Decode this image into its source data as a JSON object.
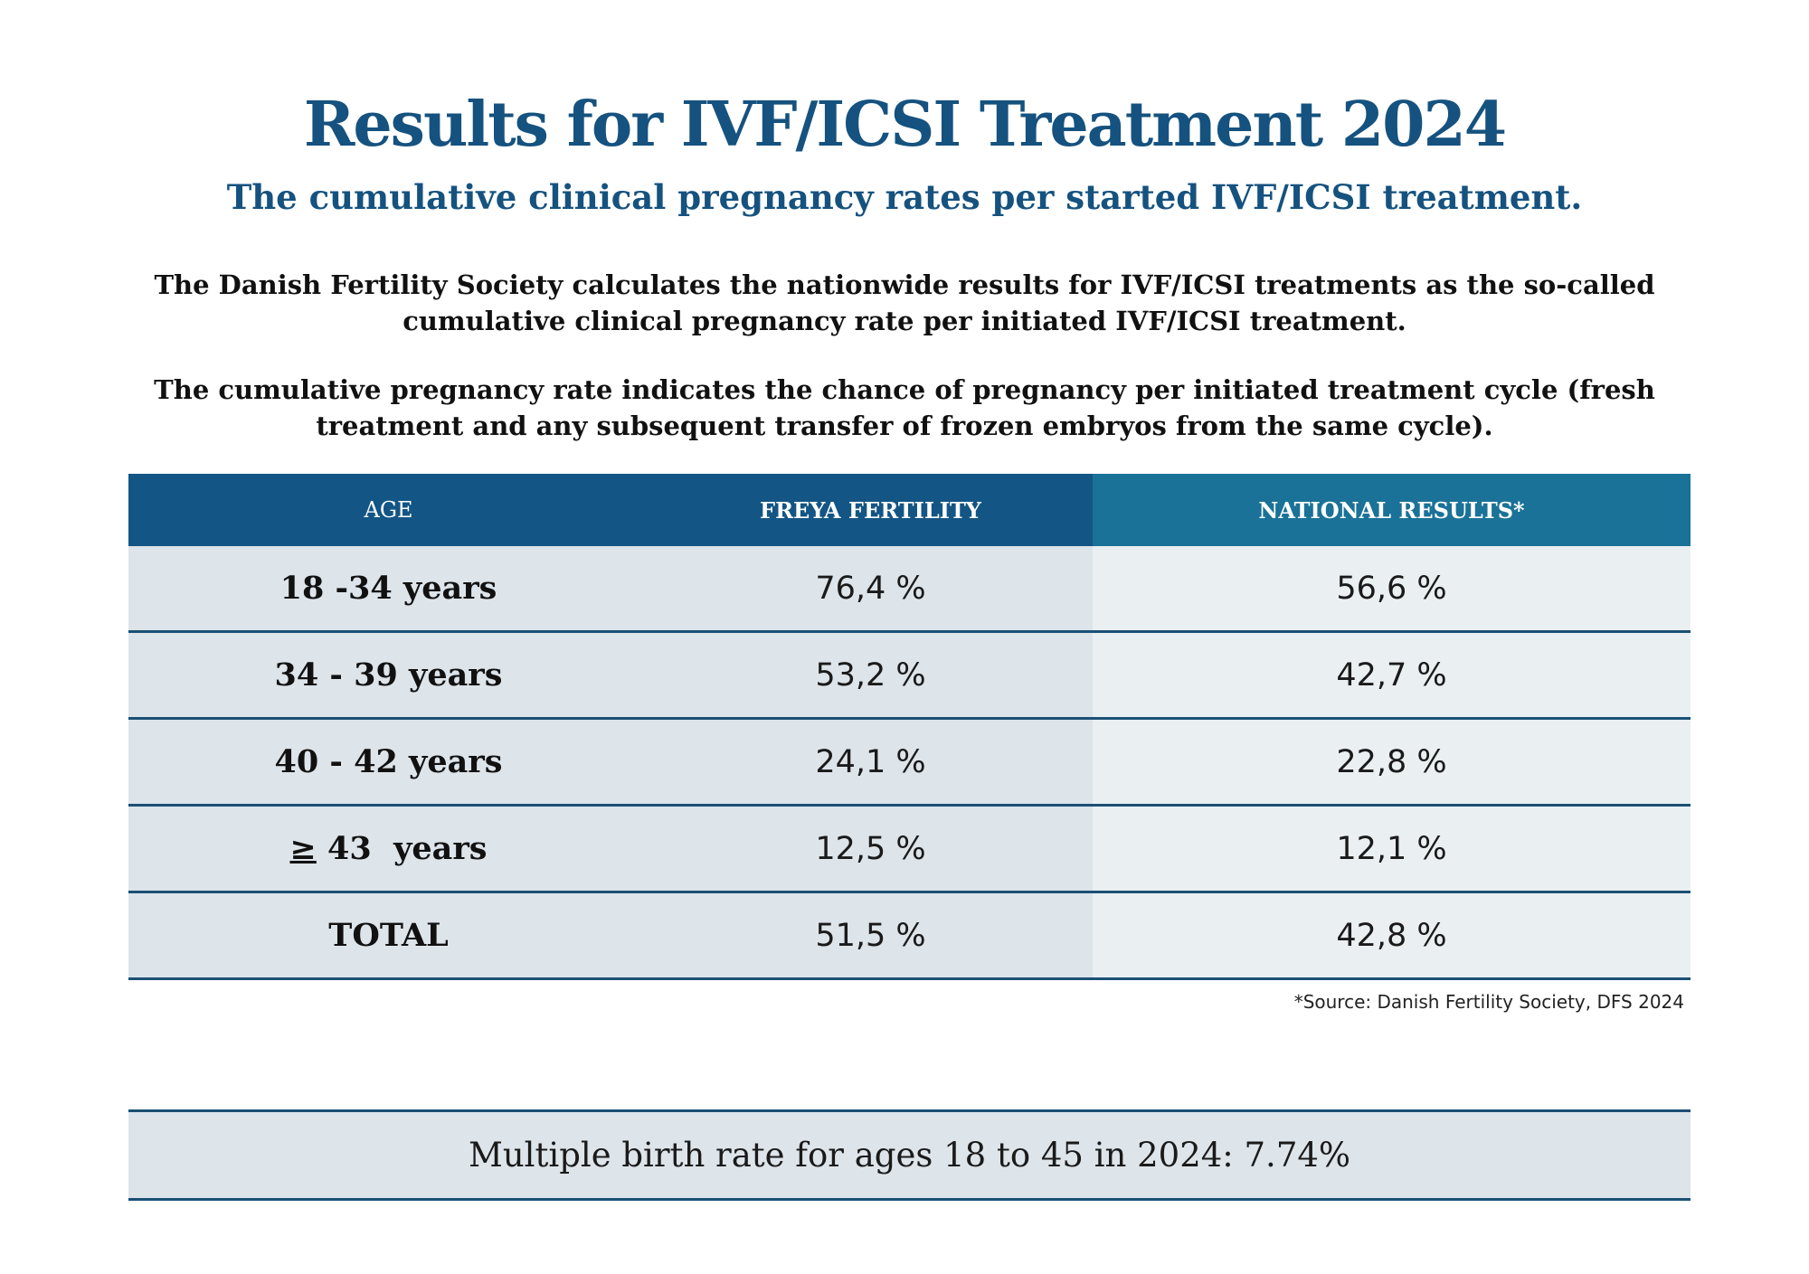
{
  "title": "Results for IVF/ICSI Treatment 2024",
  "subtitle": "The cumulative clinical pregnancy rates per started IVF/ICSI treatment.",
  "intro": [
    "The Danish Fertility Society calculates the  nationwide results for IVF/ICSI treatments as the so-called cumulative clinical pregnancy rate per initiated IVF/ICSI treatment.",
    "The cumulative pregnancy rate indicates the chance of pregnancy per initiated treatment cycle (fresh treatment and any subsequent transfer of frozen embryos from the same cycle)."
  ],
  "table": {
    "headers": {
      "age": "AGE",
      "freya": "FREYA FERTILITY",
      "national": "NATIONAL RESULTS*"
    },
    "rows": [
      {
        "age": "18 -34 years",
        "freya": "76,4 %",
        "national": "56,6 %"
      },
      {
        "age": "34 - 39 years",
        "freya": "53,2 %",
        "national": "42,7 %"
      },
      {
        "age": "40 - 42 years",
        "freya": "24,1 %",
        "national": "22,8 %"
      },
      {
        "age_symbol": "≥",
        "age": " 43  years",
        "freya": "12,5 %",
        "national": "12,1 %"
      },
      {
        "age": "TOTAL",
        "freya": "51,5 %",
        "national": "42,8 %"
      }
    ]
  },
  "source_note": "*Source: Danish Fertility Society, DFS 2024",
  "footer": "Multiple birth rate for ages 18 to 45 in 2024: 7.74%",
  "colors": {
    "brand_blue": "#15527f",
    "header_dark": "#135584",
    "header_light": "#1a7298",
    "row_fill": "#dde4ea",
    "row_fill_light": "#eaeff2"
  }
}
